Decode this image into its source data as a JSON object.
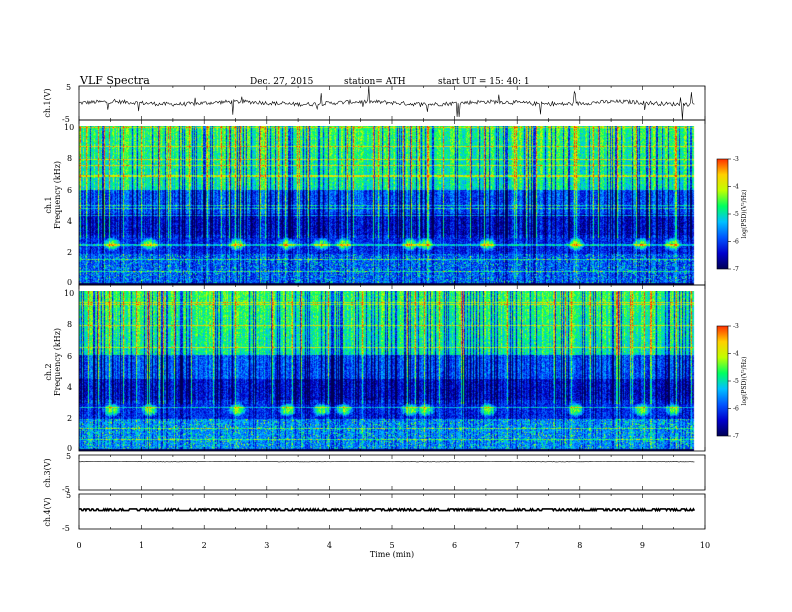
{
  "header": {
    "title": "VLF  Spectra",
    "date": "Dec. 27, 2015",
    "station": "station= ATH",
    "start": "start  UT  =   15: 40: 1"
  },
  "chart_data": [
    {
      "type": "line",
      "name": "ch1-waveform",
      "ylabel": "ch.1(V)",
      "ylim": [
        -5,
        5
      ],
      "yticks": [
        "5",
        "-5"
      ],
      "xlim": [
        0,
        10
      ],
      "baseline": 0,
      "noise_amplitude": 1.2
    },
    {
      "type": "heatmap",
      "name": "ch1-spectrogram",
      "ylabel_channel": "ch.1",
      "ylabel": "Frequency  (kHz)",
      "xlim": [
        0,
        10
      ],
      "ylim": [
        0,
        10
      ],
      "yticks": [
        "0",
        "2",
        "4",
        "6",
        "8",
        "10"
      ],
      "data_xmax": 9.83,
      "colorbar": {
        "label": "log(PSD)(V²/Hz)",
        "range": [
          -7,
          -3
        ],
        "ticks": [
          "-3",
          "-4",
          "-5",
          "-6",
          "-7"
        ]
      },
      "bursts_min": [
        0.52,
        1.12,
        2.52,
        3.32,
        3.87,
        4.22,
        5.28,
        5.53,
        6.52,
        7.93,
        8.98,
        9.48
      ],
      "burst_freq_khz": 2.6
    },
    {
      "type": "heatmap",
      "name": "ch2-spectrogram",
      "ylabel_channel": "ch.2",
      "ylabel": "Frequency  (kHz)",
      "xlim": [
        0,
        10
      ],
      "ylim": [
        0,
        10
      ],
      "yticks": [
        "0",
        "2",
        "4",
        "6",
        "8",
        "10"
      ],
      "data_xmax": 9.83,
      "colorbar": {
        "label": "log(PSD)(V²/Hz)",
        "range": [
          -7,
          -3
        ],
        "ticks": [
          "-3",
          "-4",
          "-5",
          "-6",
          "-7"
        ]
      },
      "bursts_min": [
        0.52,
        1.12,
        2.52,
        3.32,
        3.87,
        4.22,
        5.28,
        5.53,
        6.52,
        7.93,
        8.98,
        9.48
      ],
      "burst_freq_khz": 2.6
    },
    {
      "type": "line",
      "name": "ch3-waveform",
      "ylabel": "ch.3(V)",
      "ylim": [
        -5,
        5
      ],
      "yticks": [
        "5",
        "-5"
      ],
      "xlim": [
        0,
        10
      ],
      "baseline": 3.1,
      "noise_amplitude": 0.1
    },
    {
      "type": "line",
      "name": "ch4-waveform",
      "ylabel": "ch.4(V)",
      "ylim": [
        -5,
        5
      ],
      "yticks": [
        "5",
        "-5"
      ],
      "xlim": [
        0,
        10
      ],
      "baseline": 0.5,
      "noise_amplitude": 0.3
    }
  ],
  "xaxis": {
    "label": "Time  (min)",
    "ticks": [
      "0",
      "1",
      "2",
      "3",
      "4",
      "5",
      "6",
      "7",
      "8",
      "9",
      "10"
    ],
    "range": [
      0,
      10
    ]
  },
  "colors": {
    "colormap": [
      "#000055",
      "#0000cc",
      "#0055ff",
      "#00c0ff",
      "#00ff60",
      "#c0ff00",
      "#ffd000",
      "#ff3000",
      "#ffffff"
    ]
  }
}
